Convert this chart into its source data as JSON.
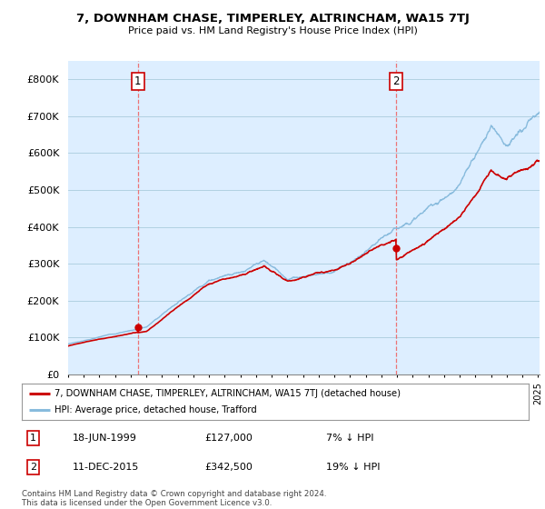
{
  "title": "7, DOWNHAM CHASE, TIMPERLEY, ALTRINCHAM, WA15 7TJ",
  "subtitle": "Price paid vs. HM Land Registry's House Price Index (HPI)",
  "ylabel_ticks": [
    "£0",
    "£100K",
    "£200K",
    "£300K",
    "£400K",
    "£500K",
    "£600K",
    "£700K",
    "£800K"
  ],
  "ytick_vals": [
    0,
    100000,
    200000,
    300000,
    400000,
    500000,
    600000,
    700000,
    800000
  ],
  "ylim": [
    0,
    850000
  ],
  "year_start": 1995,
  "year_end": 2025,
  "sale1_year": 1999.46,
  "sale1_price": 127000,
  "sale1_label": "1",
  "sale2_year": 2015.94,
  "sale2_price": 342500,
  "sale2_label": "2",
  "legend_line1": "7, DOWNHAM CHASE, TIMPERLEY, ALTRINCHAM, WA15 7TJ (detached house)",
  "legend_line2": "HPI: Average price, detached house, Trafford",
  "table_row1": [
    "1",
    "18-JUN-1999",
    "£127,000",
    "7% ↓ HPI"
  ],
  "table_row2": [
    "2",
    "11-DEC-2015",
    "£342,500",
    "19% ↓ HPI"
  ],
  "footnote": "Contains HM Land Registry data © Crown copyright and database right 2024.\nThis data is licensed under the Open Government Licence v3.0.",
  "color_red": "#cc0000",
  "color_blue": "#88bbdd",
  "color_dashed": "#ee6666",
  "plot_bg": "#ddeeff",
  "background": "#ffffff",
  "grid_color": "#aaccdd"
}
